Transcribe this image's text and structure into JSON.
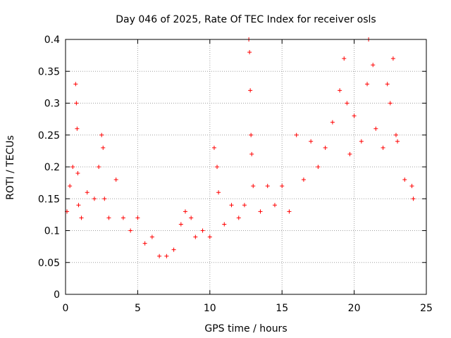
{
  "chart_data": {
    "type": "scatter",
    "title": "Day 046 of 2025, Rate Of TEC Index for receiver osls",
    "xlabel": "GPS time / hours",
    "ylabel": "ROTI / TECUs",
    "xlim": [
      0,
      25
    ],
    "ylim": [
      0,
      0.4
    ],
    "xticks": [
      "0",
      "5",
      "10",
      "15",
      "20",
      "25"
    ],
    "yticks": [
      "0",
      "0.05",
      "0.1",
      "0.15",
      "0.2",
      "0.25",
      "0.3",
      "0.35",
      "0.4"
    ],
    "xtick_values": [
      0,
      5,
      10,
      15,
      20,
      25
    ],
    "ytick_values": [
      0,
      0.05,
      0.1,
      0.15,
      0.2,
      0.25,
      0.3,
      0.35,
      0.4
    ],
    "grid": true,
    "marker": "+",
    "color": "#ff0000",
    "series": [
      {
        "x": [
          0.1,
          0.3,
          0.5,
          0.7,
          0.75,
          0.8,
          0.85,
          0.9,
          1.1,
          1.5,
          2.0,
          2.3,
          2.5,
          2.6,
          2.7,
          3.0,
          3.5,
          4.0,
          4.5,
          5.0,
          5.5,
          6.0,
          6.5,
          7.0,
          7.5,
          8.0,
          8.3,
          8.7,
          9.0,
          9.5,
          10.0,
          10.3,
          10.5,
          10.6,
          11.0,
          11.5,
          12.0,
          12.4,
          12.7,
          12.75,
          12.8,
          12.85,
          12.9,
          13.0,
          13.5,
          14.0,
          14.5,
          15.0,
          15.5,
          16.0,
          16.5,
          17.0,
          17.5,
          18.0,
          18.5,
          19.0,
          19.3,
          19.5,
          19.7,
          20.0,
          20.5,
          20.9,
          21.0,
          21.3,
          21.5,
          22.0,
          22.3,
          22.5,
          22.7,
          22.9,
          23.0,
          23.5,
          24.0,
          24.1
        ],
        "y": [
          0.13,
          0.17,
          0.2,
          0.33,
          0.3,
          0.26,
          0.19,
          0.14,
          0.12,
          0.16,
          0.15,
          0.2,
          0.25,
          0.23,
          0.15,
          0.12,
          0.18,
          0.12,
          0.1,
          0.12,
          0.08,
          0.09,
          0.06,
          0.06,
          0.07,
          0.11,
          0.13,
          0.12,
          0.09,
          0.1,
          0.09,
          0.23,
          0.2,
          0.16,
          0.11,
          0.14,
          0.12,
          0.14,
          0.4,
          0.38,
          0.32,
          0.25,
          0.22,
          0.17,
          0.13,
          0.17,
          0.14,
          0.17,
          0.13,
          0.25,
          0.18,
          0.24,
          0.2,
          0.23,
          0.27,
          0.32,
          0.37,
          0.3,
          0.22,
          0.28,
          0.24,
          0.33,
          0.4,
          0.36,
          0.26,
          0.23,
          0.33,
          0.3,
          0.37,
          0.25,
          0.24,
          0.18,
          0.17,
          0.15
        ]
      }
    ]
  }
}
